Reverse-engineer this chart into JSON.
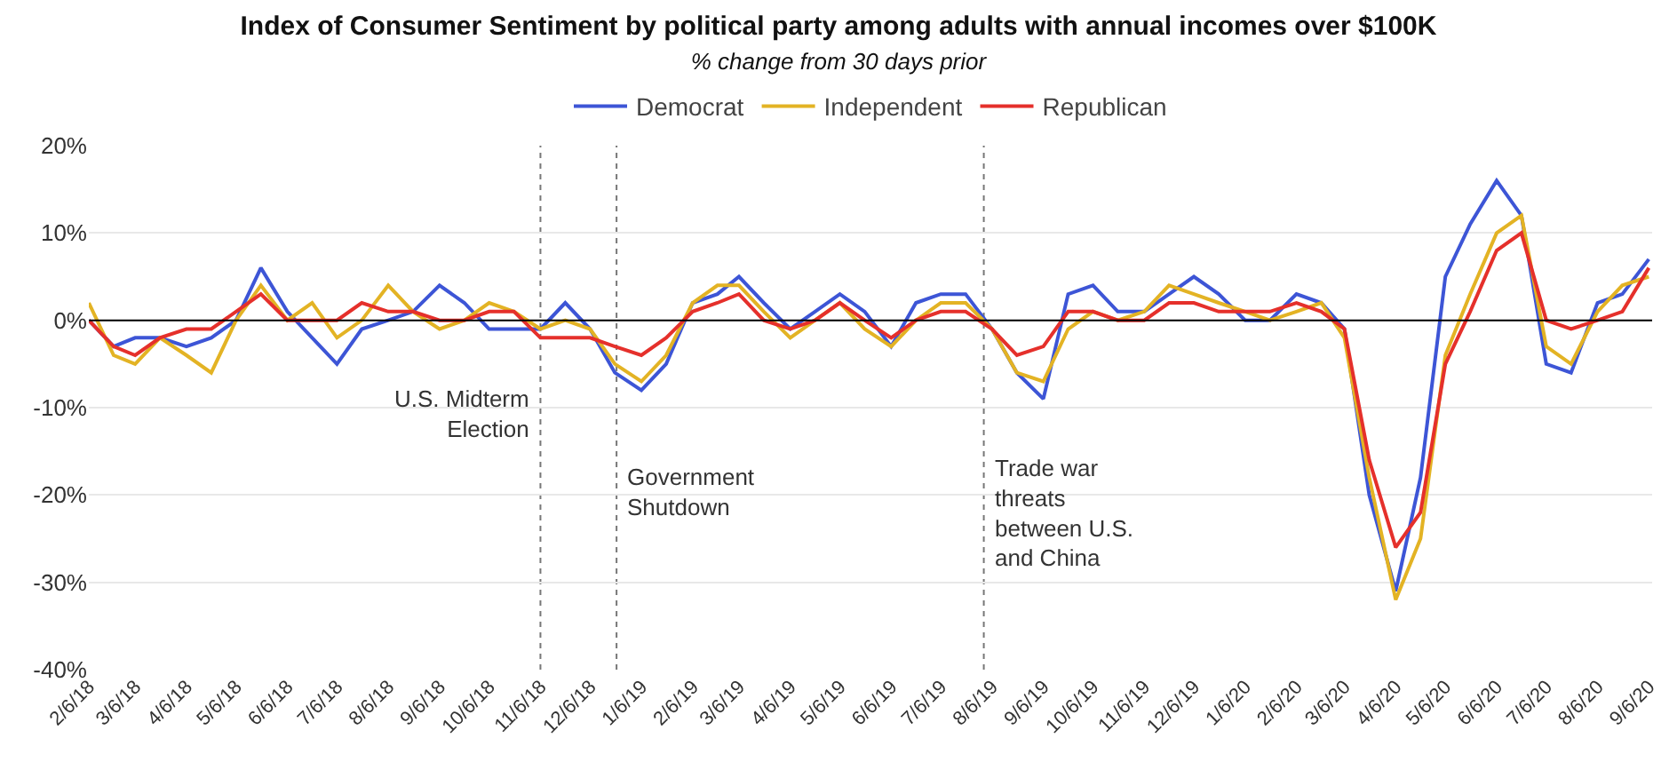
{
  "chart_data": {
    "type": "line",
    "title": "Index of Consumer Sentiment by political party among adults with annual incomes over $100K",
    "subtitle": "% change from 30 days prior",
    "x": [
      "2018-02-06",
      "2018-02-21",
      "2018-03-06",
      "2018-03-21",
      "2018-04-06",
      "2018-04-21",
      "2018-05-06",
      "2018-05-21",
      "2018-06-06",
      "2018-06-21",
      "2018-07-06",
      "2018-07-21",
      "2018-08-06",
      "2018-08-21",
      "2018-09-06",
      "2018-09-21",
      "2018-10-06",
      "2018-10-21",
      "2018-11-06",
      "2018-11-21",
      "2018-12-06",
      "2018-12-21",
      "2019-01-06",
      "2019-01-21",
      "2019-02-06",
      "2019-02-21",
      "2019-03-06",
      "2019-03-21",
      "2019-04-06",
      "2019-04-21",
      "2019-05-06",
      "2019-05-21",
      "2019-06-06",
      "2019-06-21",
      "2019-07-06",
      "2019-07-21",
      "2019-08-06",
      "2019-08-21",
      "2019-09-06",
      "2019-09-21",
      "2019-10-06",
      "2019-10-21",
      "2019-11-06",
      "2019-11-21",
      "2019-12-06",
      "2019-12-21",
      "2020-01-06",
      "2020-01-21",
      "2020-02-06",
      "2020-02-21",
      "2020-03-06",
      "2020-03-21",
      "2020-04-06",
      "2020-04-21",
      "2020-05-06",
      "2020-05-21",
      "2020-06-06",
      "2020-06-21",
      "2020-07-06",
      "2020-07-21",
      "2020-08-06",
      "2020-08-21",
      "2020-09-06"
    ],
    "series": [
      {
        "name": "Democrat",
        "color": "#3d55d6",
        "values": [
          0,
          -3,
          -2,
          -2,
          -3,
          -2,
          0,
          6,
          1,
          -2,
          -5,
          -1,
          0,
          1,
          4,
          2,
          -1,
          -1,
          -1,
          2,
          -1,
          -6,
          -8,
          -5,
          2,
          3,
          5,
          2,
          -1,
          1,
          3,
          1,
          -3,
          2,
          3,
          3,
          -1,
          -6,
          -9,
          3,
          4,
          1,
          1,
          3,
          5,
          3,
          0,
          0,
          3,
          2,
          -1,
          -20,
          -31,
          -18,
          5,
          11,
          16,
          12,
          -5,
          -6,
          2,
          3,
          7
        ]
      },
      {
        "name": "Independent",
        "color": "#e3b324",
        "values": [
          2,
          -4,
          -5,
          -2,
          -4,
          -6,
          0,
          4,
          0,
          2,
          -2,
          0,
          4,
          1,
          -1,
          0,
          2,
          1,
          -1,
          0,
          -1,
          -5,
          -7,
          -4,
          2,
          4,
          4,
          1,
          -2,
          0,
          2,
          -1,
          -3,
          0,
          2,
          2,
          -1,
          -6,
          -7,
          -1,
          1,
          0,
          1,
          4,
          3,
          2,
          1,
          0,
          1,
          2,
          -2,
          -18,
          -32,
          -25,
          -4,
          3,
          10,
          12,
          -3,
          -5,
          1,
          4,
          5
        ]
      },
      {
        "name": "Republican",
        "color": "#e5302b",
        "values": [
          0,
          -3,
          -4,
          -2,
          -1,
          -1,
          1,
          3,
          0,
          0,
          0,
          2,
          1,
          1,
          0,
          0,
          1,
          1,
          -2,
          -2,
          -2,
          -3,
          -4,
          -2,
          1,
          2,
          3,
          0,
          -1,
          0,
          2,
          0,
          -2,
          0,
          1,
          1,
          -1,
          -4,
          -3,
          1,
          1,
          0,
          0,
          2,
          2,
          1,
          1,
          1,
          2,
          1,
          -1,
          -16,
          -26,
          -22,
          -5,
          1,
          8,
          10,
          0,
          -1,
          0,
          1,
          6
        ]
      }
    ],
    "xlim": [
      "2018-02-06",
      "2020-09-08"
    ],
    "xticks": [
      {
        "value": "2018-02-06",
        "label": "2/6/18"
      },
      {
        "value": "2018-03-06",
        "label": "3/6/18"
      },
      {
        "value": "2018-04-06",
        "label": "4/6/18"
      },
      {
        "value": "2018-05-06",
        "label": "5/6/18"
      },
      {
        "value": "2018-06-06",
        "label": "6/6/18"
      },
      {
        "value": "2018-07-06",
        "label": "7/6/18"
      },
      {
        "value": "2018-08-06",
        "label": "8/6/18"
      },
      {
        "value": "2018-09-06",
        "label": "9/6/18"
      },
      {
        "value": "2018-10-06",
        "label": "10/6/18"
      },
      {
        "value": "2018-11-06",
        "label": "11/6/18"
      },
      {
        "value": "2018-12-06",
        "label": "12/6/18"
      },
      {
        "value": "2019-01-06",
        "label": "1/6/19"
      },
      {
        "value": "2019-02-06",
        "label": "2/6/19"
      },
      {
        "value": "2019-03-06",
        "label": "3/6/19"
      },
      {
        "value": "2019-04-06",
        "label": "4/6/19"
      },
      {
        "value": "2019-05-06",
        "label": "5/6/19"
      },
      {
        "value": "2019-06-06",
        "label": "6/6/19"
      },
      {
        "value": "2019-07-06",
        "label": "7/6/19"
      },
      {
        "value": "2019-08-06",
        "label": "8/6/19"
      },
      {
        "value": "2019-09-06",
        "label": "9/6/19"
      },
      {
        "value": "2019-10-06",
        "label": "10/6/19"
      },
      {
        "value": "2019-11-06",
        "label": "11/6/19"
      },
      {
        "value": "2019-12-06",
        "label": "12/6/19"
      },
      {
        "value": "2020-01-06",
        "label": "1/6/20"
      },
      {
        "value": "2020-02-06",
        "label": "2/6/20"
      },
      {
        "value": "2020-03-06",
        "label": "3/6/20"
      },
      {
        "value": "2020-04-06",
        "label": "4/6/20"
      },
      {
        "value": "2020-05-06",
        "label": "5/6/20"
      },
      {
        "value": "2020-06-06",
        "label": "6/6/20"
      },
      {
        "value": "2020-07-06",
        "label": "7/6/20"
      },
      {
        "value": "2020-08-06",
        "label": "8/6/20"
      },
      {
        "value": "2020-09-06",
        "label": "9/6/20"
      }
    ],
    "ylim": [
      -40,
      20
    ],
    "yticks": [
      {
        "value": -40,
        "label": "-40%"
      },
      {
        "value": -30,
        "label": "-30%"
      },
      {
        "value": -20,
        "label": "-20%"
      },
      {
        "value": -10,
        "label": "-10%"
      },
      {
        "value": 0,
        "label": "0%"
      },
      {
        "value": 10,
        "label": "10%"
      },
      {
        "value": 20,
        "label": "20%"
      }
    ],
    "ref_lines": [
      {
        "axis": "y",
        "value": 0,
        "color": "#000000",
        "line_style": "solid"
      },
      {
        "axis": "x",
        "value": "2018-11-06",
        "label": "U.S. Midterm\nElection",
        "color": "#777777",
        "line_style": "dotted"
      },
      {
        "axis": "x",
        "value": "2018-12-22",
        "label": "Government\nShutdown",
        "color": "#777777",
        "line_style": "dotted"
      },
      {
        "axis": "x",
        "value": "2019-08-01",
        "label": "Trade war\nthreats\nbetween U.S.\nand China",
        "color": "#777777",
        "line_style": "dotted"
      }
    ],
    "grid": "y",
    "legend": "top",
    "marker": "none",
    "line_style": "solid"
  }
}
